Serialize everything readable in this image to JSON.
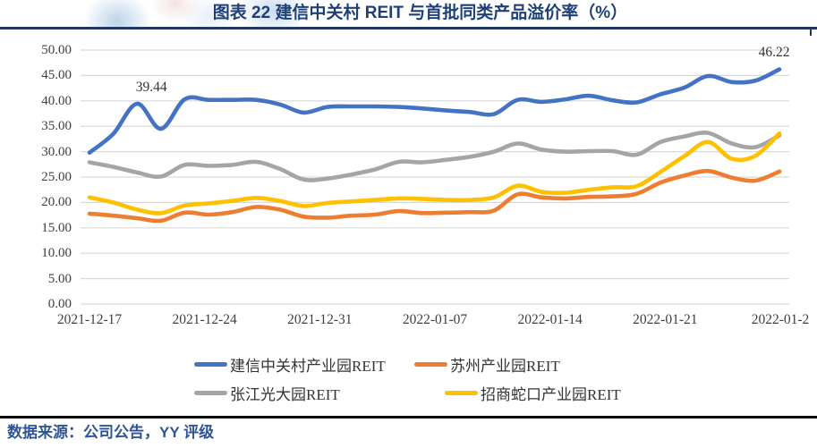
{
  "header": {
    "title": "图表 22 建信中关村 REIT 与首批同类产品溢价率（%）"
  },
  "chart_data": {
    "type": "line",
    "title": "图表 22 建信中关村 REIT 与首批同类产品溢价率（%）",
    "ylim": [
      0,
      50
    ],
    "grid": true,
    "legend_position": "bottom",
    "y_ticks": [
      "50.00",
      "45.00",
      "40.00",
      "35.00",
      "30.00",
      "25.00",
      "20.00",
      "15.00",
      "10.00",
      "5.00",
      "0.00"
    ],
    "x_ticks": [
      "2021-12-17",
      "2021-12-24",
      "2021-12-31",
      "2022-01-07",
      "2022-01-14",
      "2022-01-21",
      "2022-01-2"
    ],
    "series": [
      {
        "name": "建信中关村产业园REIT",
        "color": "#4472C4",
        "values": [
          29.8,
          33.5,
          39.44,
          34.5,
          40.3,
          40.2,
          40.2,
          40.2,
          39.3,
          37.7,
          38.8,
          38.9,
          38.9,
          38.8,
          38.5,
          38.1,
          37.8,
          37.4,
          40.2,
          39.8,
          40.3,
          41.0,
          40.1,
          39.7,
          41.3,
          42.6,
          44.9,
          43.7,
          44.0,
          46.22
        ]
      },
      {
        "name": "苏州产业园REIT",
        "color": "#ED7D31",
        "values": [
          17.8,
          17.4,
          16.9,
          16.4,
          18.0,
          17.6,
          18.1,
          19.1,
          18.6,
          17.2,
          17.0,
          17.4,
          17.6,
          18.3,
          17.9,
          18.0,
          18.1,
          18.4,
          21.6,
          21.0,
          20.8,
          21.1,
          21.2,
          21.7,
          23.9,
          25.3,
          26.2,
          24.9,
          24.3,
          26.1
        ]
      },
      {
        "name": "张江光大园REIT",
        "color": "#A5A5A5",
        "values": [
          27.9,
          27.0,
          25.9,
          25.1,
          27.4,
          27.2,
          27.4,
          28.0,
          26.6,
          24.5,
          24.7,
          25.5,
          26.5,
          28.0,
          27.9,
          28.4,
          29.0,
          30.0,
          31.6,
          30.4,
          30.0,
          30.1,
          30.1,
          29.4,
          31.9,
          33.0,
          33.7,
          31.6,
          30.9,
          33.2
        ]
      },
      {
        "name": "招商蛇口产业园REIT",
        "color": "#FFC000",
        "values": [
          21.0,
          20.0,
          18.6,
          17.9,
          19.4,
          19.8,
          20.3,
          20.9,
          20.3,
          19.3,
          19.9,
          20.2,
          20.5,
          20.8,
          20.7,
          20.5,
          20.5,
          21.0,
          23.3,
          22.1,
          21.9,
          22.5,
          23.0,
          23.2,
          26.0,
          29.1,
          31.9,
          28.6,
          29.2,
          33.6
        ]
      }
    ],
    "annotations": [
      {
        "text": "39.44",
        "series": 0,
        "index": 2,
        "dx": 16
      },
      {
        "text": "46.22",
        "series": 0,
        "index": 29,
        "dx": -6
      }
    ]
  },
  "footer": {
    "source": "数据来源：公司公告，YY 评级"
  }
}
